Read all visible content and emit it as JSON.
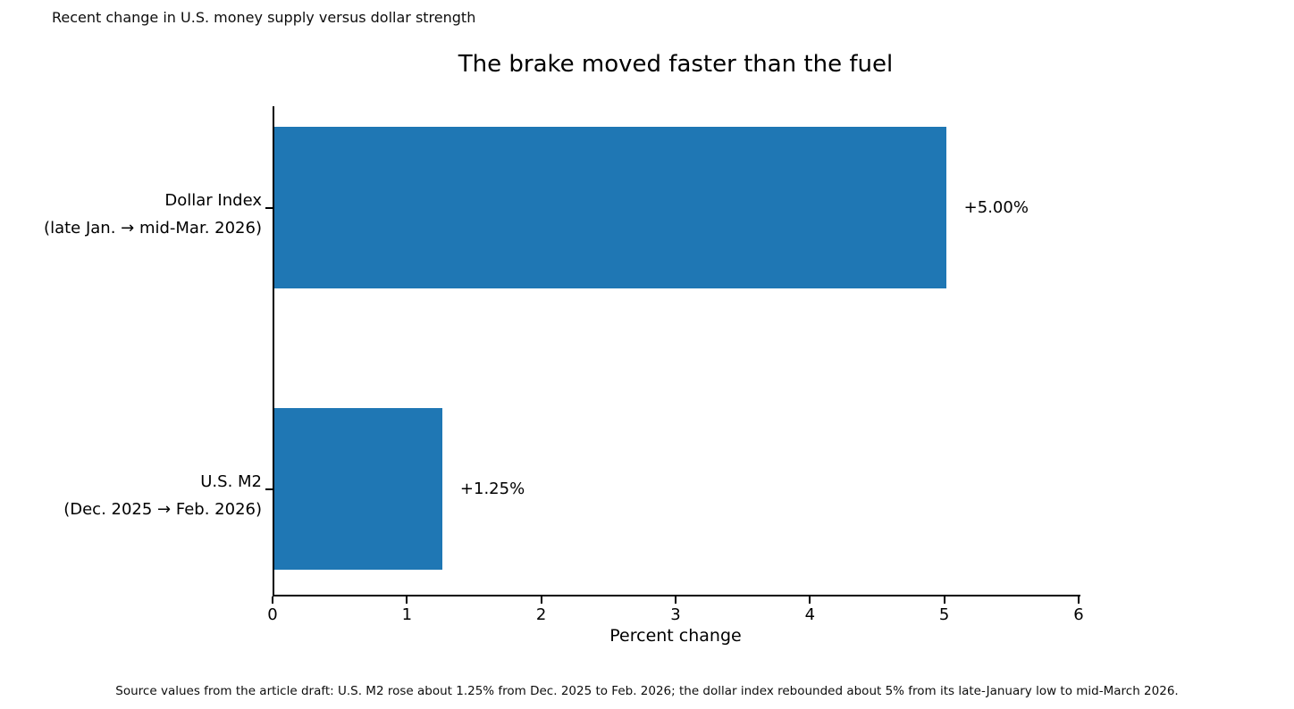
{
  "figure": {
    "top_note": "Recent change in U.S. money supply versus dollar strength",
    "source_note": "Source values from the article draft: U.S. M2 rose about 1.25% from Dec. 2025 to Feb. 2026; the dollar index rebounded about 5% from its late-January low to mid-March 2026."
  },
  "chart_data": {
    "type": "bar",
    "orientation": "horizontal",
    "title": "The brake moved faster than the fuel",
    "xlabel": "Percent change",
    "ylabel": "",
    "xlim": [
      0,
      6
    ],
    "x_ticks": [
      "0",
      "1",
      "2",
      "3",
      "4",
      "5",
      "6"
    ],
    "grid": false,
    "legend": "none",
    "bar_color": "#1f77b4",
    "categories": [
      {
        "line1": "Dollar Index",
        "line2": "(late Jan. → mid-Mar. 2026)"
      },
      {
        "line1": "U.S. M2",
        "line2": "(Dec. 2025 → Feb. 2026)"
      }
    ],
    "values": [
      5.0,
      1.25
    ],
    "value_labels": [
      "+5.00%",
      "+1.25%"
    ]
  }
}
